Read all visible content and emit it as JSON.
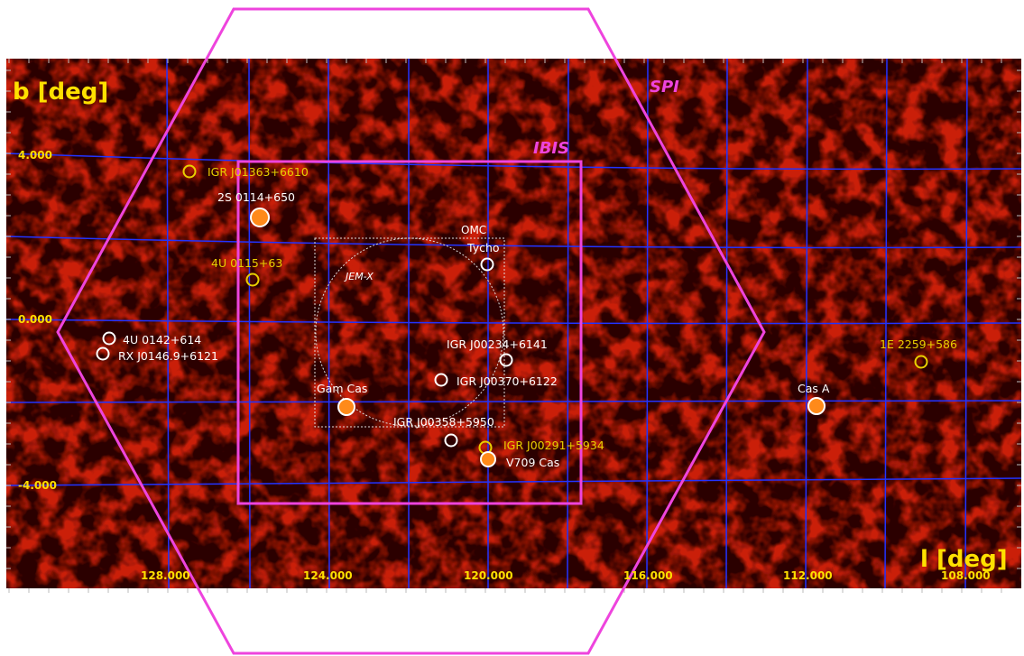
{
  "axes": {
    "y_title": "b [deg]",
    "x_title": "l [deg]",
    "x_ticks": [
      "128.000",
      "124.000",
      "120.000",
      "116.000",
      "112.000",
      "108.000"
    ],
    "y_ticks": [
      "4.000",
      "0.000",
      "-4.000"
    ]
  },
  "instruments": {
    "spi": "SPI",
    "ibis": "IBIS",
    "omc": "OMC",
    "jemx": "JEM-X"
  },
  "sources": [
    {
      "name": "IGR J01363+6610",
      "kind": "open",
      "color": "#e8d000"
    },
    {
      "name": "2S 0114+650",
      "kind": "filled",
      "color": "#ffffff"
    },
    {
      "name": "4U 0115+63",
      "kind": "open",
      "color": "#e8d000"
    },
    {
      "name": "Tycho",
      "kind": "open",
      "color": "#ffffff"
    },
    {
      "name": "4U 0142+614",
      "kind": "open",
      "color": "#ffffff"
    },
    {
      "name": "RX J0146.9+6121",
      "kind": "open",
      "color": "#ffffff"
    },
    {
      "name": "IGR J00234+6141",
      "kind": "open",
      "color": "#ffffff"
    },
    {
      "name": "IGR J00370+6122",
      "kind": "open",
      "color": "#ffffff"
    },
    {
      "name": "Gam Cas",
      "kind": "filled",
      "color": "#ffffff"
    },
    {
      "name": "IGR J00358+5950",
      "kind": "open",
      "color": "#ffffff"
    },
    {
      "name": "IGR J00291+5934",
      "kind": "open",
      "color": "#e8d000"
    },
    {
      "name": "V709 Cas",
      "kind": "filled",
      "color": "#ffffff"
    },
    {
      "name": "Cas A",
      "kind": "filled",
      "color": "#ffffff"
    },
    {
      "name": "1E 2259+586",
      "kind": "open",
      "color": "#e8d000"
    }
  ],
  "colors": {
    "fov": "#ee44dd",
    "grid": "#2233ff",
    "axis_text": "#ffe000",
    "source_fill": "#ff8a1a"
  }
}
